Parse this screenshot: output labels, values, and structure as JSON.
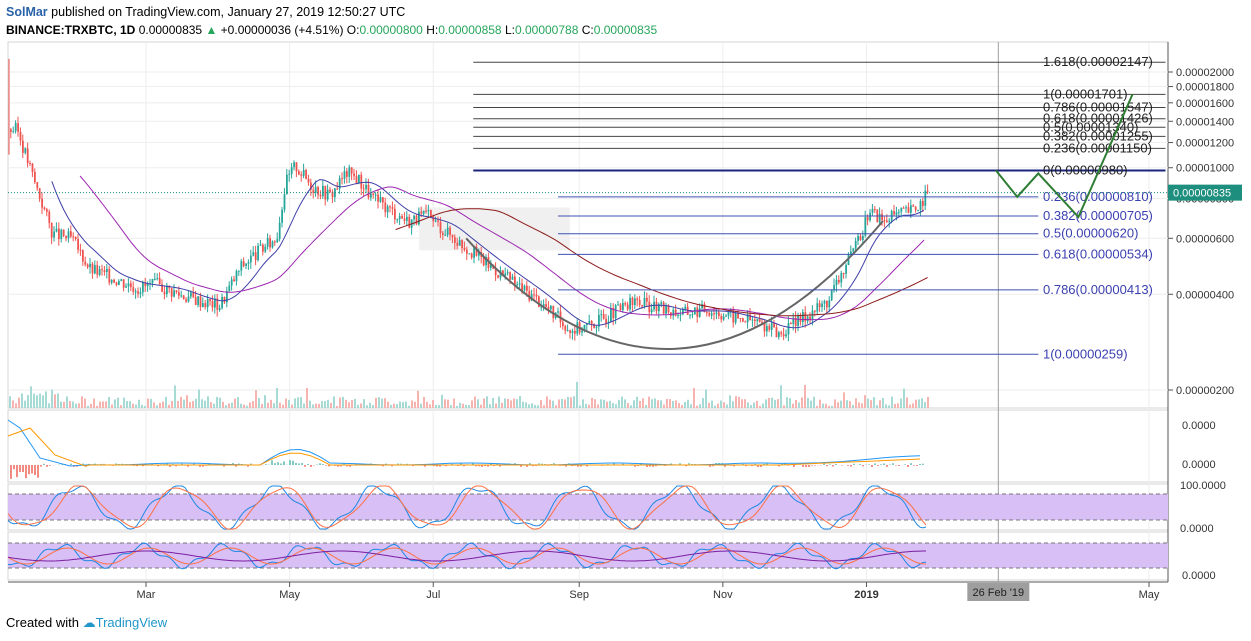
{
  "header": {
    "author": "SolMar",
    "published": "published on TradingView.com, January 27, 2019 12:50:27 UTC",
    "symbol": "BINANCE:TRXBTC, 1D",
    "last": "0.00000835",
    "change": "+0.00000036 (+4.51%)",
    "o_label": "O:",
    "o": "0.00000800",
    "h_label": "H:",
    "h": "0.00000858",
    "l_label": "L:",
    "l": "0.00000788",
    "c_label": "C:",
    "c": "0.00000835"
  },
  "footer": {
    "created_with": "Created with",
    "brand": "TradingView"
  },
  "colors": {
    "up": "#26a69a",
    "down": "#ef5350",
    "fib_upper": "#444444",
    "fib_lower": "#3f51b5",
    "projection": "#2e7d32",
    "arc": "#666666",
    "ma1": "#3f3fa8",
    "ma2": "#9c27b0",
    "ma3": "#8e1b1b",
    "price_tag": "#1e8e7e",
    "rsi_band": "#d8bff5"
  },
  "chart_data": {
    "type": "candlestick",
    "price_last": "0.00000835",
    "y_ticks": [
      {
        "value": 2e-06,
        "label": "0.00000200"
      },
      {
        "value": 4e-06,
        "label": "0.00000400"
      },
      {
        "value": 6e-06,
        "label": "0.00000600"
      },
      {
        "value": 8e-06,
        "label": "0.00000800"
      },
      {
        "value": 1e-05,
        "label": "0.00001000"
      },
      {
        "value": 1.2e-05,
        "label": "0.00001200"
      },
      {
        "value": 1.4e-05,
        "label": "0.00001400"
      },
      {
        "value": 1.6e-05,
        "label": "0.00001600"
      },
      {
        "value": 1.8e-05,
        "label": "0.00001800"
      },
      {
        "value": 2e-05,
        "label": "0.00002000"
      }
    ],
    "x_ticks": [
      {
        "date": "2018-03-01",
        "label": "Mar"
      },
      {
        "date": "2018-05-01",
        "label": "May"
      },
      {
        "date": "2018-07-01",
        "label": "Jul"
      },
      {
        "date": "2018-09-01",
        "label": "Sep"
      },
      {
        "date": "2018-11-01",
        "label": "Nov"
      },
      {
        "date": "2019-01-01",
        "label": "2019"
      },
      {
        "date": "2019-05-01",
        "label": "May"
      }
    ],
    "cursor_label": "26 Feb '19",
    "fib_upper": [
      {
        "value": 2.147e-05,
        "label": "1.618(0.00002147)"
      },
      {
        "value": 1.701e-05,
        "label": "1(0.00001701)"
      },
      {
        "value": 1.547e-05,
        "label": "0.786(0.00001547)"
      },
      {
        "value": 1.426e-05,
        "label": "0.618(0.00001426)"
      },
      {
        "value": 1.34e-05,
        "label": "0.5(0.00001340)"
      },
      {
        "value": 1.255e-05,
        "label": "0.382(0.00001255)"
      },
      {
        "value": 1.15e-05,
        "label": "0.236(0.00001150)"
      },
      {
        "value": 9.8e-06,
        "label": "0(0.00000980)"
      }
    ],
    "fib_lower": [
      {
        "value": 8.1e-06,
        "label": "0.236(0.00000810)"
      },
      {
        "value": 7.05e-06,
        "label": "0.382(0.00000705)"
      },
      {
        "value": 6.2e-06,
        "label": "0.5(0.00000620)"
      },
      {
        "value": 5.34e-06,
        "label": "0.618(0.00000534)"
      },
      {
        "value": 4.13e-06,
        "label": "0.786(0.00000413)"
      },
      {
        "value": 2.59e-06,
        "label": "1(0.00000259)"
      }
    ],
    "price_path": [
      [
        "2018-01-05",
        1.32e-05
      ],
      [
        "2018-01-12",
        9.2e-06
      ],
      [
        "2018-01-20",
        6.2e-06
      ],
      [
        "2018-01-28",
        6e-06
      ],
      [
        "2018-02-05",
        4.8e-06
      ],
      [
        "2018-02-15",
        4.5e-06
      ],
      [
        "2018-02-25",
        4.2e-06
      ],
      [
        "2018-03-05",
        4.3e-06
      ],
      [
        "2018-03-15",
        4e-06
      ],
      [
        "2018-03-25",
        3.8e-06
      ],
      [
        "2018-04-01",
        3.7e-06
      ],
      [
        "2018-04-10",
        4.9e-06
      ],
      [
        "2018-04-18",
        5.5e-06
      ],
      [
        "2018-04-25",
        6e-06
      ],
      [
        "2018-04-29",
        9e-06
      ],
      [
        "2018-05-03",
        1.02e-05
      ],
      [
        "2018-05-10",
        8.8e-06
      ],
      [
        "2018-05-18",
        8.2e-06
      ],
      [
        "2018-05-25",
        9.7e-06
      ],
      [
        "2018-05-30",
        9.2e-06
      ],
      [
        "2018-06-05",
        8e-06
      ],
      [
        "2018-06-12",
        7.4e-06
      ],
      [
        "2018-06-20",
        6.8e-06
      ],
      [
        "2018-06-28",
        7.1e-06
      ],
      [
        "2018-07-05",
        6.4e-06
      ],
      [
        "2018-07-15",
        5.6e-06
      ],
      [
        "2018-07-25",
        4.9e-06
      ],
      [
        "2018-08-05",
        4.3e-06
      ],
      [
        "2018-08-15",
        3.8e-06
      ],
      [
        "2018-08-22",
        3.4e-06
      ],
      [
        "2018-08-28",
        3.1e-06
      ],
      [
        "2018-09-05",
        3.2e-06
      ],
      [
        "2018-09-15",
        3.5e-06
      ],
      [
        "2018-09-25",
        3.8e-06
      ],
      [
        "2018-10-05",
        3.6e-06
      ],
      [
        "2018-10-15",
        3.5e-06
      ],
      [
        "2018-10-25",
        3.6e-06
      ],
      [
        "2018-11-05",
        3.4e-06
      ],
      [
        "2018-11-15",
        3.3e-06
      ],
      [
        "2018-11-25",
        3e-06
      ],
      [
        "2018-12-05",
        3.4e-06
      ],
      [
        "2018-12-15",
        3.8e-06
      ],
      [
        "2018-12-22",
        4.8e-06
      ],
      [
        "2018-12-28",
        5.8e-06
      ],
      [
        "2019-01-02",
        7.4e-06
      ],
      [
        "2019-01-08",
        6.8e-06
      ],
      [
        "2019-01-15",
        7.2e-06
      ],
      [
        "2019-01-21",
        7.4e-06
      ],
      [
        "2019-01-27",
        8.35e-06
      ]
    ],
    "projection_path": [
      [
        "2019-02-25",
        9.8e-06
      ],
      [
        "2019-03-06",
        8.1e-06
      ],
      [
        "2019-03-15",
        9.6e-06
      ],
      [
        "2019-04-01",
        7e-06
      ],
      [
        "2019-04-24",
        1.7e-05
      ]
    ],
    "macd_axis": [
      "0.0000",
      "0.0000"
    ],
    "stoch_rsi_axis": [
      "100.0000",
      "0.0000"
    ],
    "rsi_axis": [
      "0.0000"
    ]
  }
}
